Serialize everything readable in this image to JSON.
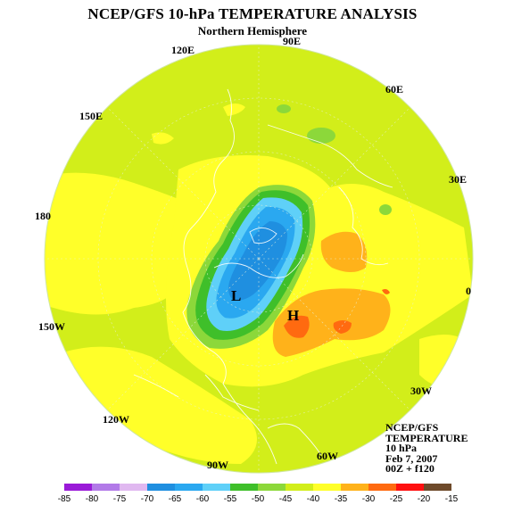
{
  "header": {
    "title": "NCEP/GFS 10-hPa TEMPERATURE ANALYSIS",
    "subtitle": "Northern Hemisphere"
  },
  "longitude_labels": [
    "90E",
    "120E",
    "60E",
    "150E",
    "30E",
    "180",
    "0",
    "150W",
    "30W",
    "120W",
    "60W",
    "90W"
  ],
  "pressure_centers": {
    "low": "L",
    "high": "H"
  },
  "info_box": {
    "lines": [
      "NCEP/GFS",
      "TEMPERATURE",
      "10 hPa",
      "Feb 7, 2007",
      "00Z + f120"
    ]
  },
  "colorbar": {
    "labels": [
      "-85",
      "-80",
      "-75",
      "-70",
      "-65",
      "-60",
      "-55",
      "-50",
      "-45",
      "-40",
      "-35",
      "-30",
      "-25",
      "-20",
      "-15"
    ],
    "colors": [
      "#9a1ad8",
      "#b27ae8",
      "#e0b8f0",
      "#1f8fe0",
      "#2aa8f0",
      "#5fd0f8",
      "#3fbf2a",
      "#8cd83a",
      "#d2ee1a",
      "#ffff29",
      "#ffb21a",
      "#ff6a10",
      "#ff1010",
      "#6e4a2a"
    ]
  },
  "colors": {
    "background_field": "#d2ee1a",
    "yellow_band": "#ffff29",
    "cold_core": "#2aa8f0",
    "warm_core": "#ffb21a"
  }
}
